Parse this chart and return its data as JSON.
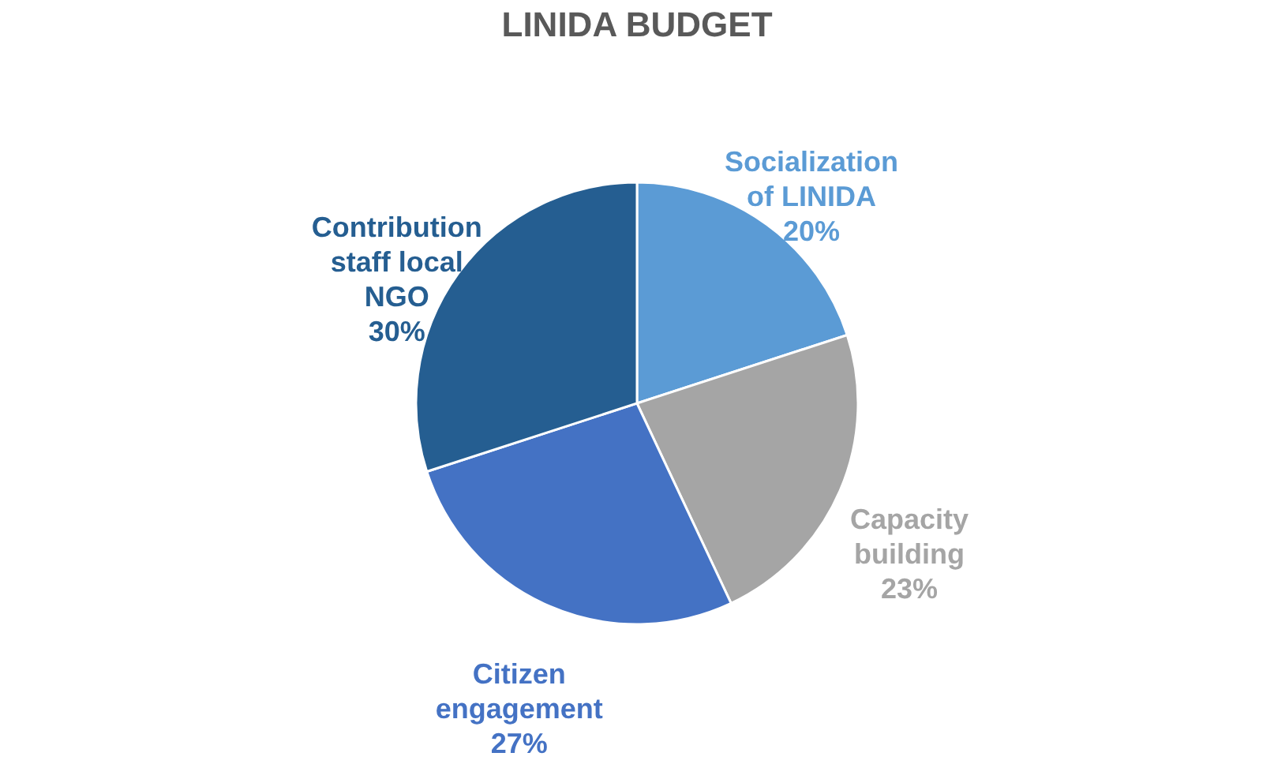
{
  "chart_data": {
    "type": "pie",
    "title": "LINIDA BUDGET",
    "categories": [
      "Socialization of LINIDA",
      "Capacity building",
      "Citizen engagement",
      "Contribution staff local NGO"
    ],
    "values": [
      20,
      23,
      27,
      30
    ],
    "value_labels": [
      "20%",
      "23%",
      "27%",
      "30%"
    ],
    "colors": [
      "#5b9bd5",
      "#a5a5a5",
      "#4472c4",
      "#255e91"
    ],
    "legend": false
  }
}
